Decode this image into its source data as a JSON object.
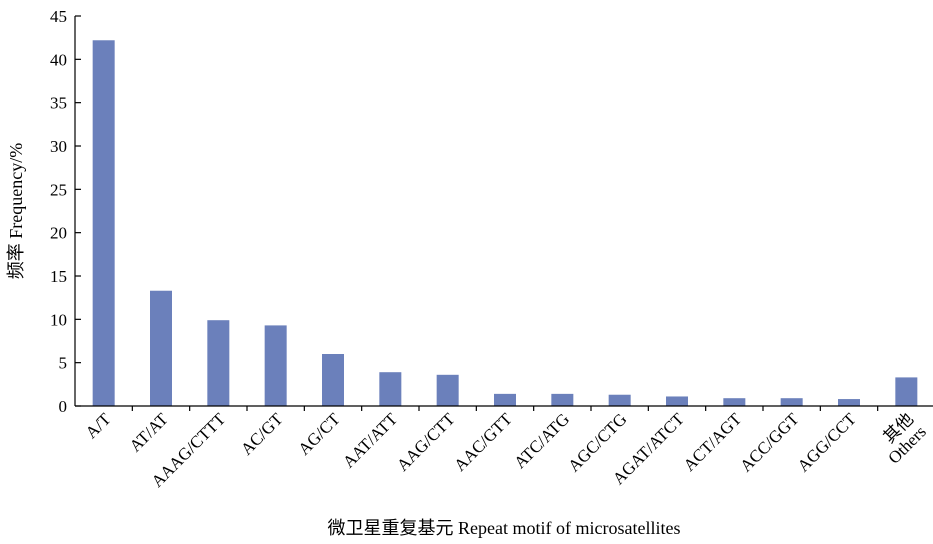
{
  "chart_data": {
    "type": "bar",
    "title": "",
    "xlabel": "微卫星重复基元 Repeat motif of microsatellites",
    "ylabel": "频率 Frequency/%",
    "ylim": [
      0,
      45
    ],
    "yticks": [
      0,
      5,
      10,
      15,
      20,
      25,
      30,
      35,
      40,
      45
    ],
    "grid": false,
    "categories": [
      "A/T",
      "AT/AT",
      "AAAG/CTTT",
      "AC/GT",
      "AG/CT",
      "AAT/ATT",
      "AAG/CTT",
      "AAC/GTT",
      "ATC/ATG",
      "AGC/CTG",
      "AGAT/ATCT",
      "ACT/AGT",
      "ACC/GGT",
      "AGG/CCT",
      "其他 Others"
    ],
    "category_lines": [
      [
        "A/T"
      ],
      [
        "AT/AT"
      ],
      [
        "AAAG/CTTT"
      ],
      [
        "AC/GT"
      ],
      [
        "AG/CT"
      ],
      [
        "AAT/ATT"
      ],
      [
        "AAG/CTT"
      ],
      [
        "AAC/GTT"
      ],
      [
        "ATC/ATG"
      ],
      [
        "AGC/CTG"
      ],
      [
        "AGAT/ATCT"
      ],
      [
        "ACT/AGT"
      ],
      [
        "ACC/GGT"
      ],
      [
        "AGG/CCT"
      ],
      [
        "其他",
        "Others"
      ]
    ],
    "series": [
      {
        "values": [
          42.2,
          13.3,
          9.9,
          9.3,
          6.0,
          3.9,
          3.6,
          1.4,
          1.4,
          1.3,
          1.1,
          0.9,
          0.9,
          0.8,
          3.3
        ]
      }
    ],
    "bar_color": "#6b80bb"
  }
}
